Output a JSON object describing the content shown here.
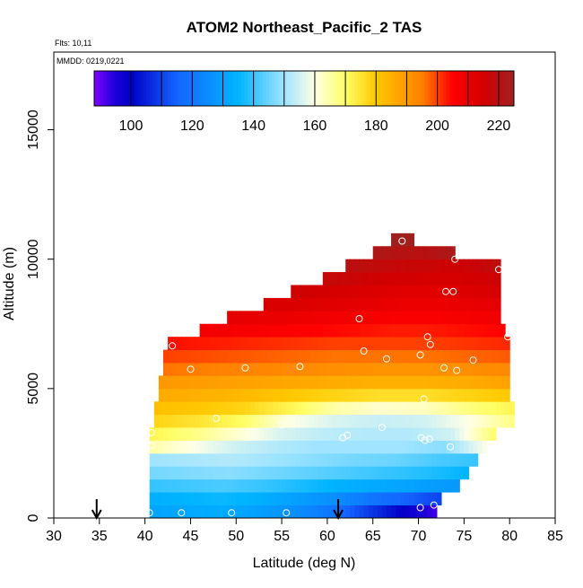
{
  "chart_data": {
    "type": "heatmap",
    "title": "ATOM2 Northeast_Pacific_2 TAS",
    "subtitle_lines": [
      "Flts: 10,11",
      "MMDD: 0219,0221"
    ],
    "xlabel": "Latitude (deg N)",
    "ylabel": "Altitude (m)",
    "xlim": [
      30,
      85
    ],
    "ylim": [
      0,
      18000
    ],
    "xticks": [
      30,
      35,
      40,
      45,
      50,
      55,
      60,
      65,
      70,
      75,
      80,
      85
    ],
    "yticks": [
      0,
      5000,
      10000,
      15000
    ],
    "colorbar": {
      "min": 88,
      "max": 225,
      "ticks": [
        100,
        120,
        140,
        160,
        180,
        200,
        220
      ],
      "stops": [
        {
          "v": 88,
          "c": "#7f00ff"
        },
        {
          "v": 95,
          "c": "#1a00d8"
        },
        {
          "v": 100,
          "c": "#0000c8"
        },
        {
          "v": 115,
          "c": "#1464ff"
        },
        {
          "v": 135,
          "c": "#00b4ff"
        },
        {
          "v": 150,
          "c": "#a0e4ff"
        },
        {
          "v": 160,
          "c": "#ffffe6"
        },
        {
          "v": 170,
          "c": "#ffff66"
        },
        {
          "v": 180,
          "c": "#ffc800"
        },
        {
          "v": 195,
          "c": "#ff8000"
        },
        {
          "v": 205,
          "c": "#ff0000"
        },
        {
          "v": 215,
          "c": "#d20000"
        },
        {
          "v": 225,
          "c": "#a02020"
        }
      ]
    },
    "layers": [
      {
        "alt": 0,
        "xmin": 40.5,
        "xmax": 72,
        "values": [
          131,
          132,
          133,
          130,
          126,
          120,
          110,
          100,
          92
        ]
      },
      {
        "alt": 500,
        "xmin": 40.5,
        "xmax": 72.5,
        "values": [
          134,
          135,
          136,
          134,
          130,
          126,
          120,
          115,
          110
        ]
      },
      {
        "alt": 1000,
        "xmin": 40.5,
        "xmax": 74.5,
        "values": [
          140,
          141,
          142,
          140,
          137,
          134,
          132,
          130,
          128
        ]
      },
      {
        "alt": 1500,
        "xmin": 40.5,
        "xmax": 75.5,
        "values": [
          146,
          147,
          148,
          146,
          144,
          142,
          140,
          138,
          135
        ]
      },
      {
        "alt": 2000,
        "xmin": 40.5,
        "xmax": 76.5,
        "values": [
          150,
          151,
          152,
          150,
          148,
          146,
          145,
          142,
          140
        ]
      },
      {
        "alt": 2500,
        "xmin": 40.5,
        "xmax": 77.5,
        "values": [
          165,
          160,
          155,
          152,
          150,
          150,
          150,
          148,
          160
        ]
      },
      {
        "alt": 3000,
        "xmin": 40.5,
        "xmax": 78.5,
        "values": [
          172,
          168,
          162,
          156,
          153,
          152,
          152,
          155,
          170
        ]
      },
      {
        "alt": 3500,
        "xmin": 41.0,
        "xmax": 80.5,
        "values": [
          178,
          175,
          170,
          160,
          156,
          154,
          155,
          160,
          168
        ]
      },
      {
        "alt": 4000,
        "xmin": 41.0,
        "xmax": 80.5,
        "values": [
          182,
          180,
          178,
          172,
          165,
          162,
          163,
          168,
          172
        ]
      },
      {
        "alt": 4500,
        "xmin": 41.5,
        "xmax": 80.0,
        "values": [
          186,
          185,
          183,
          180,
          178,
          176,
          176,
          178,
          180
        ]
      },
      {
        "alt": 5000,
        "xmin": 41.5,
        "xmax": 80.0,
        "values": [
          190,
          189,
          188,
          187,
          186,
          185,
          185,
          186,
          188
        ]
      },
      {
        "alt": 5500,
        "xmin": 42.0,
        "xmax": 80.0,
        "values": [
          196,
          195,
          194,
          193,
          192,
          191,
          191,
          192,
          193
        ]
      },
      {
        "alt": 6000,
        "xmin": 42.0,
        "xmax": 80.0,
        "values": [
          200,
          199,
          198,
          197,
          196,
          196,
          196,
          197,
          198
        ]
      },
      {
        "alt": 6500,
        "xmin": 42.5,
        "xmax": 80.0,
        "values": [
          204,
          203,
          202,
          201,
          200,
          200,
          200,
          201,
          202
        ]
      },
      {
        "alt": 7000,
        "xmin": 46.0,
        "xmax": 79.5,
        "values": [
          208,
          207,
          206,
          205,
          204,
          203,
          203,
          204,
          205
        ]
      },
      {
        "alt": 7500,
        "xmin": 49.0,
        "xmax": 79.0,
        "values": [
          211,
          210,
          209,
          208,
          207,
          206,
          206,
          207,
          208
        ]
      },
      {
        "alt": 8000,
        "xmin": 53.0,
        "xmax": 79.0,
        "values": [
          214,
          213,
          212,
          211,
          210,
          209,
          209,
          210,
          211
        ]
      },
      {
        "alt": 8500,
        "xmin": 56.0,
        "xmax": 79.0,
        "values": [
          216,
          215,
          214,
          213,
          212,
          212,
          212,
          213,
          214
        ]
      },
      {
        "alt": 9000,
        "xmin": 59.5,
        "xmax": 79.0,
        "values": [
          218,
          217,
          216,
          215,
          215,
          214,
          214,
          215,
          216
        ]
      },
      {
        "alt": 9500,
        "xmin": 62.0,
        "xmax": 79.0,
        "values": [
          220,
          219,
          218,
          217,
          217,
          216,
          216,
          217,
          219
        ]
      },
      {
        "alt": 10000,
        "xmin": 65.0,
        "xmax": 74.0,
        "values": [
          222,
          222,
          221,
          221,
          220,
          220,
          221,
          222,
          223
        ]
      },
      {
        "alt": 10500,
        "xmin": 67.0,
        "xmax": 69.5,
        "values": [
          225,
          225,
          225,
          225,
          225,
          225,
          225,
          225,
          225
        ]
      }
    ],
    "points": [
      [
        40.5,
        200
      ],
      [
        44.0,
        200
      ],
      [
        49.5,
        200
      ],
      [
        55.5,
        200
      ],
      [
        70.2,
        400
      ],
      [
        71.7,
        500
      ],
      [
        40.7,
        2800
      ],
      [
        47.8,
        3850
      ],
      [
        55.0,
        3600
      ],
      [
        61.7,
        3100
      ],
      [
        62.2,
        3200
      ],
      [
        66.0,
        3500
      ],
      [
        70.3,
        3100
      ],
      [
        70.7,
        3000
      ],
      [
        71.2,
        3050
      ],
      [
        73.5,
        2750
      ],
      [
        40.7,
        3300
      ],
      [
        43.0,
        6650
      ],
      [
        45.0,
        5750
      ],
      [
        51.0,
        5800
      ],
      [
        57.0,
        5850
      ],
      [
        64.0,
        6450
      ],
      [
        66.5,
        6150
      ],
      [
        70.2,
        6300
      ],
      [
        70.6,
        4600
      ],
      [
        71.0,
        7000
      ],
      [
        71.3,
        6700
      ],
      [
        72.8,
        5800
      ],
      [
        74.2,
        5700
      ],
      [
        76.0,
        6100
      ],
      [
        79.8,
        7000
      ],
      [
        63.5,
        7700
      ],
      [
        73.0,
        8750
      ],
      [
        73.8,
        8750
      ],
      [
        74.0,
        10000
      ],
      [
        78.8,
        9600
      ],
      [
        68.2,
        10700
      ]
    ],
    "arrows": [
      34.7,
      61.2
    ]
  }
}
